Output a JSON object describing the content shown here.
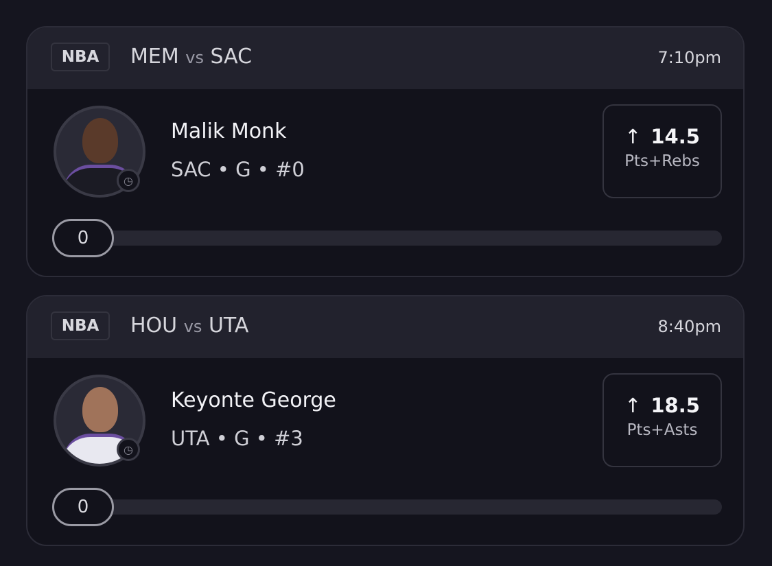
{
  "cards": [
    {
      "league": "NBA",
      "team_a": "MEM",
      "vs": "vs",
      "team_b": "SAC",
      "time": "7:10pm",
      "player": {
        "name": "Malik Monk",
        "info": "SAC • G • #0",
        "jersey_color": "#1b1b24"
      },
      "projection": {
        "direction": "up",
        "arrow": "↑",
        "value": "14.5",
        "stat": "Pts+Rebs"
      },
      "progress": {
        "current": "0",
        "fraction": 0
      }
    },
    {
      "league": "NBA",
      "team_a": "HOU",
      "vs": "vs",
      "team_b": "UTA",
      "time": "8:40pm",
      "player": {
        "name": "Keyonte George",
        "info": "UTA • G • #3",
        "jersey_color": "#e8e8f0"
      },
      "projection": {
        "direction": "up",
        "arrow": "↑",
        "value": "18.5",
        "stat": "Pts+Asts"
      },
      "progress": {
        "current": "0",
        "fraction": 0
      }
    }
  ],
  "colors": {
    "background": "#15151f",
    "header": "#22222d",
    "card": "#12121b",
    "accent_jersey_trim": "#6b4ea0"
  }
}
